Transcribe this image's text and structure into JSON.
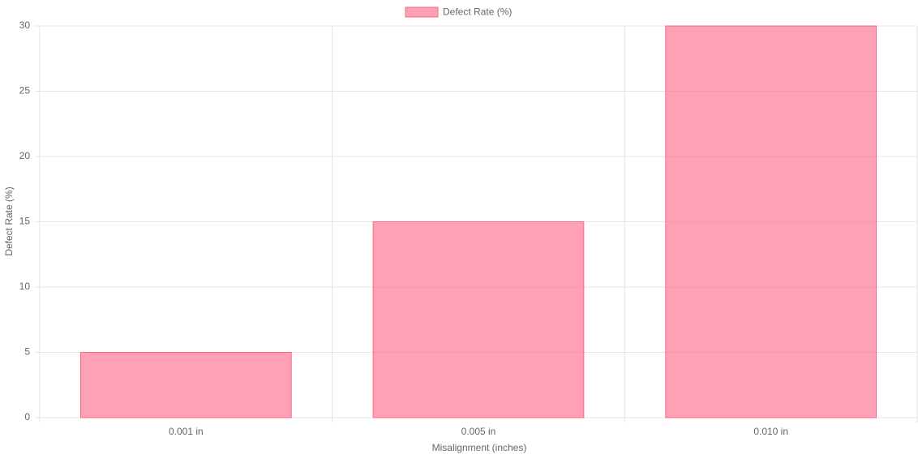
{
  "chart_data": {
    "type": "bar",
    "categories": [
      "0.001 in",
      "0.005 in",
      "0.010 in"
    ],
    "series": [
      {
        "name": "Defect Rate (%)",
        "color": "rgba(255, 99, 132, 0.6)",
        "border_color": "rgba(255, 99, 132, 1)",
        "values": [
          5,
          15,
          30
        ]
      }
    ],
    "x_label": "Misalignment (inches)",
    "y_label": "Defect Rate (%)",
    "ylim": [
      0,
      30
    ],
    "yticks": [
      0,
      5,
      10,
      15,
      20,
      25,
      30
    ],
    "grid": true,
    "legend": "top"
  }
}
